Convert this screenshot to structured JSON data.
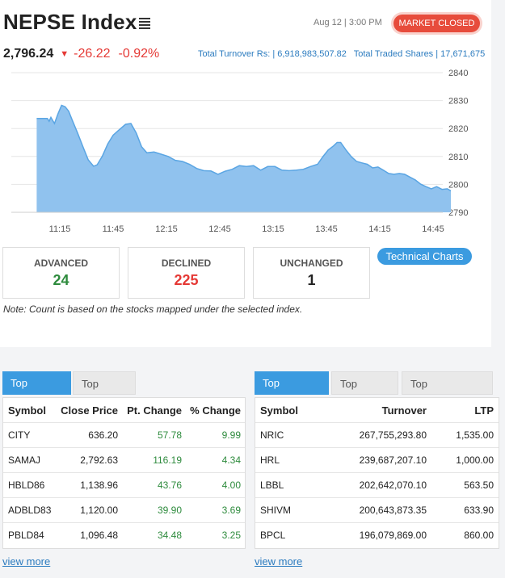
{
  "header": {
    "title": "NEPSE Index",
    "datetime": "Aug 12 | 3:00 PM",
    "status": "MARKET CLOSED",
    "status_color": "#e74c3c"
  },
  "summary": {
    "index_value": "2,796.24",
    "change": "-26.22",
    "pct_change": "-0.92%",
    "total_turnover": "Total Turnover Rs: | 6,918,983,507.82",
    "total_shares": "Total Traded Shares | 17,671,675"
  },
  "chart_data": {
    "type": "area",
    "x_ticks": [
      "11:15",
      "11:45",
      "12:15",
      "12:45",
      "13:15",
      "13:45",
      "14:15",
      "14:45"
    ],
    "y_ticks": [
      "2840",
      "2830",
      "2820",
      "2810",
      "2800",
      "2790"
    ],
    "ylim": [
      2790,
      2840
    ],
    "fill_color": "#90c2ee",
    "line_color": "#5aa5e3",
    "points": [
      [
        "11:02",
        2823.6
      ],
      [
        "11:08",
        2823.6
      ],
      [
        "11:09",
        2822.6
      ],
      [
        "11:10",
        2824.0
      ],
      [
        "11:12",
        2821.8
      ],
      [
        "11:14",
        2825.3
      ],
      [
        "11:16",
        2828.3
      ],
      [
        "11:18",
        2827.8
      ],
      [
        "11:20",
        2826.2
      ],
      [
        "11:22",
        2823.0
      ],
      [
        "11:25",
        2818.4
      ],
      [
        "11:28",
        2813.5
      ],
      [
        "11:31",
        2808.8
      ],
      [
        "11:34",
        2806.5
      ],
      [
        "11:36",
        2807.0
      ],
      [
        "11:39",
        2810.2
      ],
      [
        "11:42",
        2814.5
      ],
      [
        "11:45",
        2817.6
      ],
      [
        "11:48",
        2819.3
      ],
      [
        "11:52",
        2821.5
      ],
      [
        "11:55",
        2821.8
      ],
      [
        "11:58",
        2818.4
      ],
      [
        "12:01",
        2813.5
      ],
      [
        "12:04",
        2811.3
      ],
      [
        "12:08",
        2811.6
      ],
      [
        "12:12",
        2810.8
      ],
      [
        "12:16",
        2810.0
      ],
      [
        "12:20",
        2808.6
      ],
      [
        "12:24",
        2808.2
      ],
      [
        "12:28",
        2807.2
      ],
      [
        "12:32",
        2805.7
      ],
      [
        "12:36",
        2804.9
      ],
      [
        "12:40",
        2804.8
      ],
      [
        "12:44",
        2803.6
      ],
      [
        "12:48",
        2804.7
      ],
      [
        "12:52",
        2805.4
      ],
      [
        "12:56",
        2806.7
      ],
      [
        "13:00",
        2806.4
      ],
      [
        "13:04",
        2806.7
      ],
      [
        "13:08",
        2805.1
      ],
      [
        "13:12",
        2806.4
      ],
      [
        "13:16",
        2806.4
      ],
      [
        "13:20",
        2805.1
      ],
      [
        "13:24",
        2804.9
      ],
      [
        "13:28",
        2805.1
      ],
      [
        "13:32",
        2805.4
      ],
      [
        "13:36",
        2806.4
      ],
      [
        "13:40",
        2807.2
      ],
      [
        "13:43",
        2809.9
      ],
      [
        "13:46",
        2812.3
      ],
      [
        "13:49",
        2813.8
      ],
      [
        "13:51",
        2815.0
      ],
      [
        "13:53",
        2815.0
      ],
      [
        "13:56",
        2812.3
      ],
      [
        "13:59",
        2809.9
      ],
      [
        "14:02",
        2808.2
      ],
      [
        "14:05",
        2807.7
      ],
      [
        "14:08",
        2807.2
      ],
      [
        "14:11",
        2805.9
      ],
      [
        "14:14",
        2806.2
      ],
      [
        "14:17",
        2805.1
      ],
      [
        "14:20",
        2803.9
      ],
      [
        "14:23",
        2803.6
      ],
      [
        "14:26",
        2803.9
      ],
      [
        "14:29",
        2803.6
      ],
      [
        "14:32",
        2802.6
      ],
      [
        "14:35",
        2801.6
      ],
      [
        "14:38",
        2800.1
      ],
      [
        "14:41",
        2799.2
      ],
      [
        "14:44",
        2798.4
      ],
      [
        "14:47",
        2799.2
      ],
      [
        "14:50",
        2798.2
      ],
      [
        "14:53",
        2798.4
      ],
      [
        "14:55",
        2797.7
      ]
    ]
  },
  "counts": {
    "advanced_label": "ADVANCED",
    "advanced": "24",
    "declined_label": "DECLINED",
    "declined": "225",
    "unchanged_label": "UNCHANGED",
    "unchanged": "1",
    "tech_button": "Technical Charts",
    "note": "Note: Count is based on the stocks mapped under the selected index."
  },
  "gainers": {
    "tabs": [
      "Top Gainers",
      "Top Losers"
    ],
    "headers": [
      "Symbol",
      "Close Price",
      "Pt. Change",
      "% Change"
    ],
    "rows": [
      [
        "CITY",
        "636.20",
        "57.78",
        "9.99"
      ],
      [
        "SAMAJ",
        "2,792.63",
        "116.19",
        "4.34"
      ],
      [
        "HBLD86",
        "1,138.96",
        "43.76",
        "4.00"
      ],
      [
        "ADBLD83",
        "1,120.00",
        "39.90",
        "3.69"
      ],
      [
        "PBLD84",
        "1,096.48",
        "34.48",
        "3.25"
      ]
    ],
    "view_more": "view more"
  },
  "turnover": {
    "tabs": [
      "Top Turnover",
      "Top Volume",
      "Top Transactions"
    ],
    "headers": [
      "Symbol",
      "Turnover",
      "LTP"
    ],
    "rows": [
      [
        "NRIC",
        "267,755,293.80",
        "1,535.00"
      ],
      [
        "HRL",
        "239,687,207.10",
        "1,000.00"
      ],
      [
        "LBBL",
        "202,642,070.10",
        "563.50"
      ],
      [
        "SHIVM",
        "200,643,873.35",
        "633.90"
      ],
      [
        "BPCL",
        "196,079,869.00",
        "860.00"
      ]
    ],
    "view_more": "view more"
  }
}
